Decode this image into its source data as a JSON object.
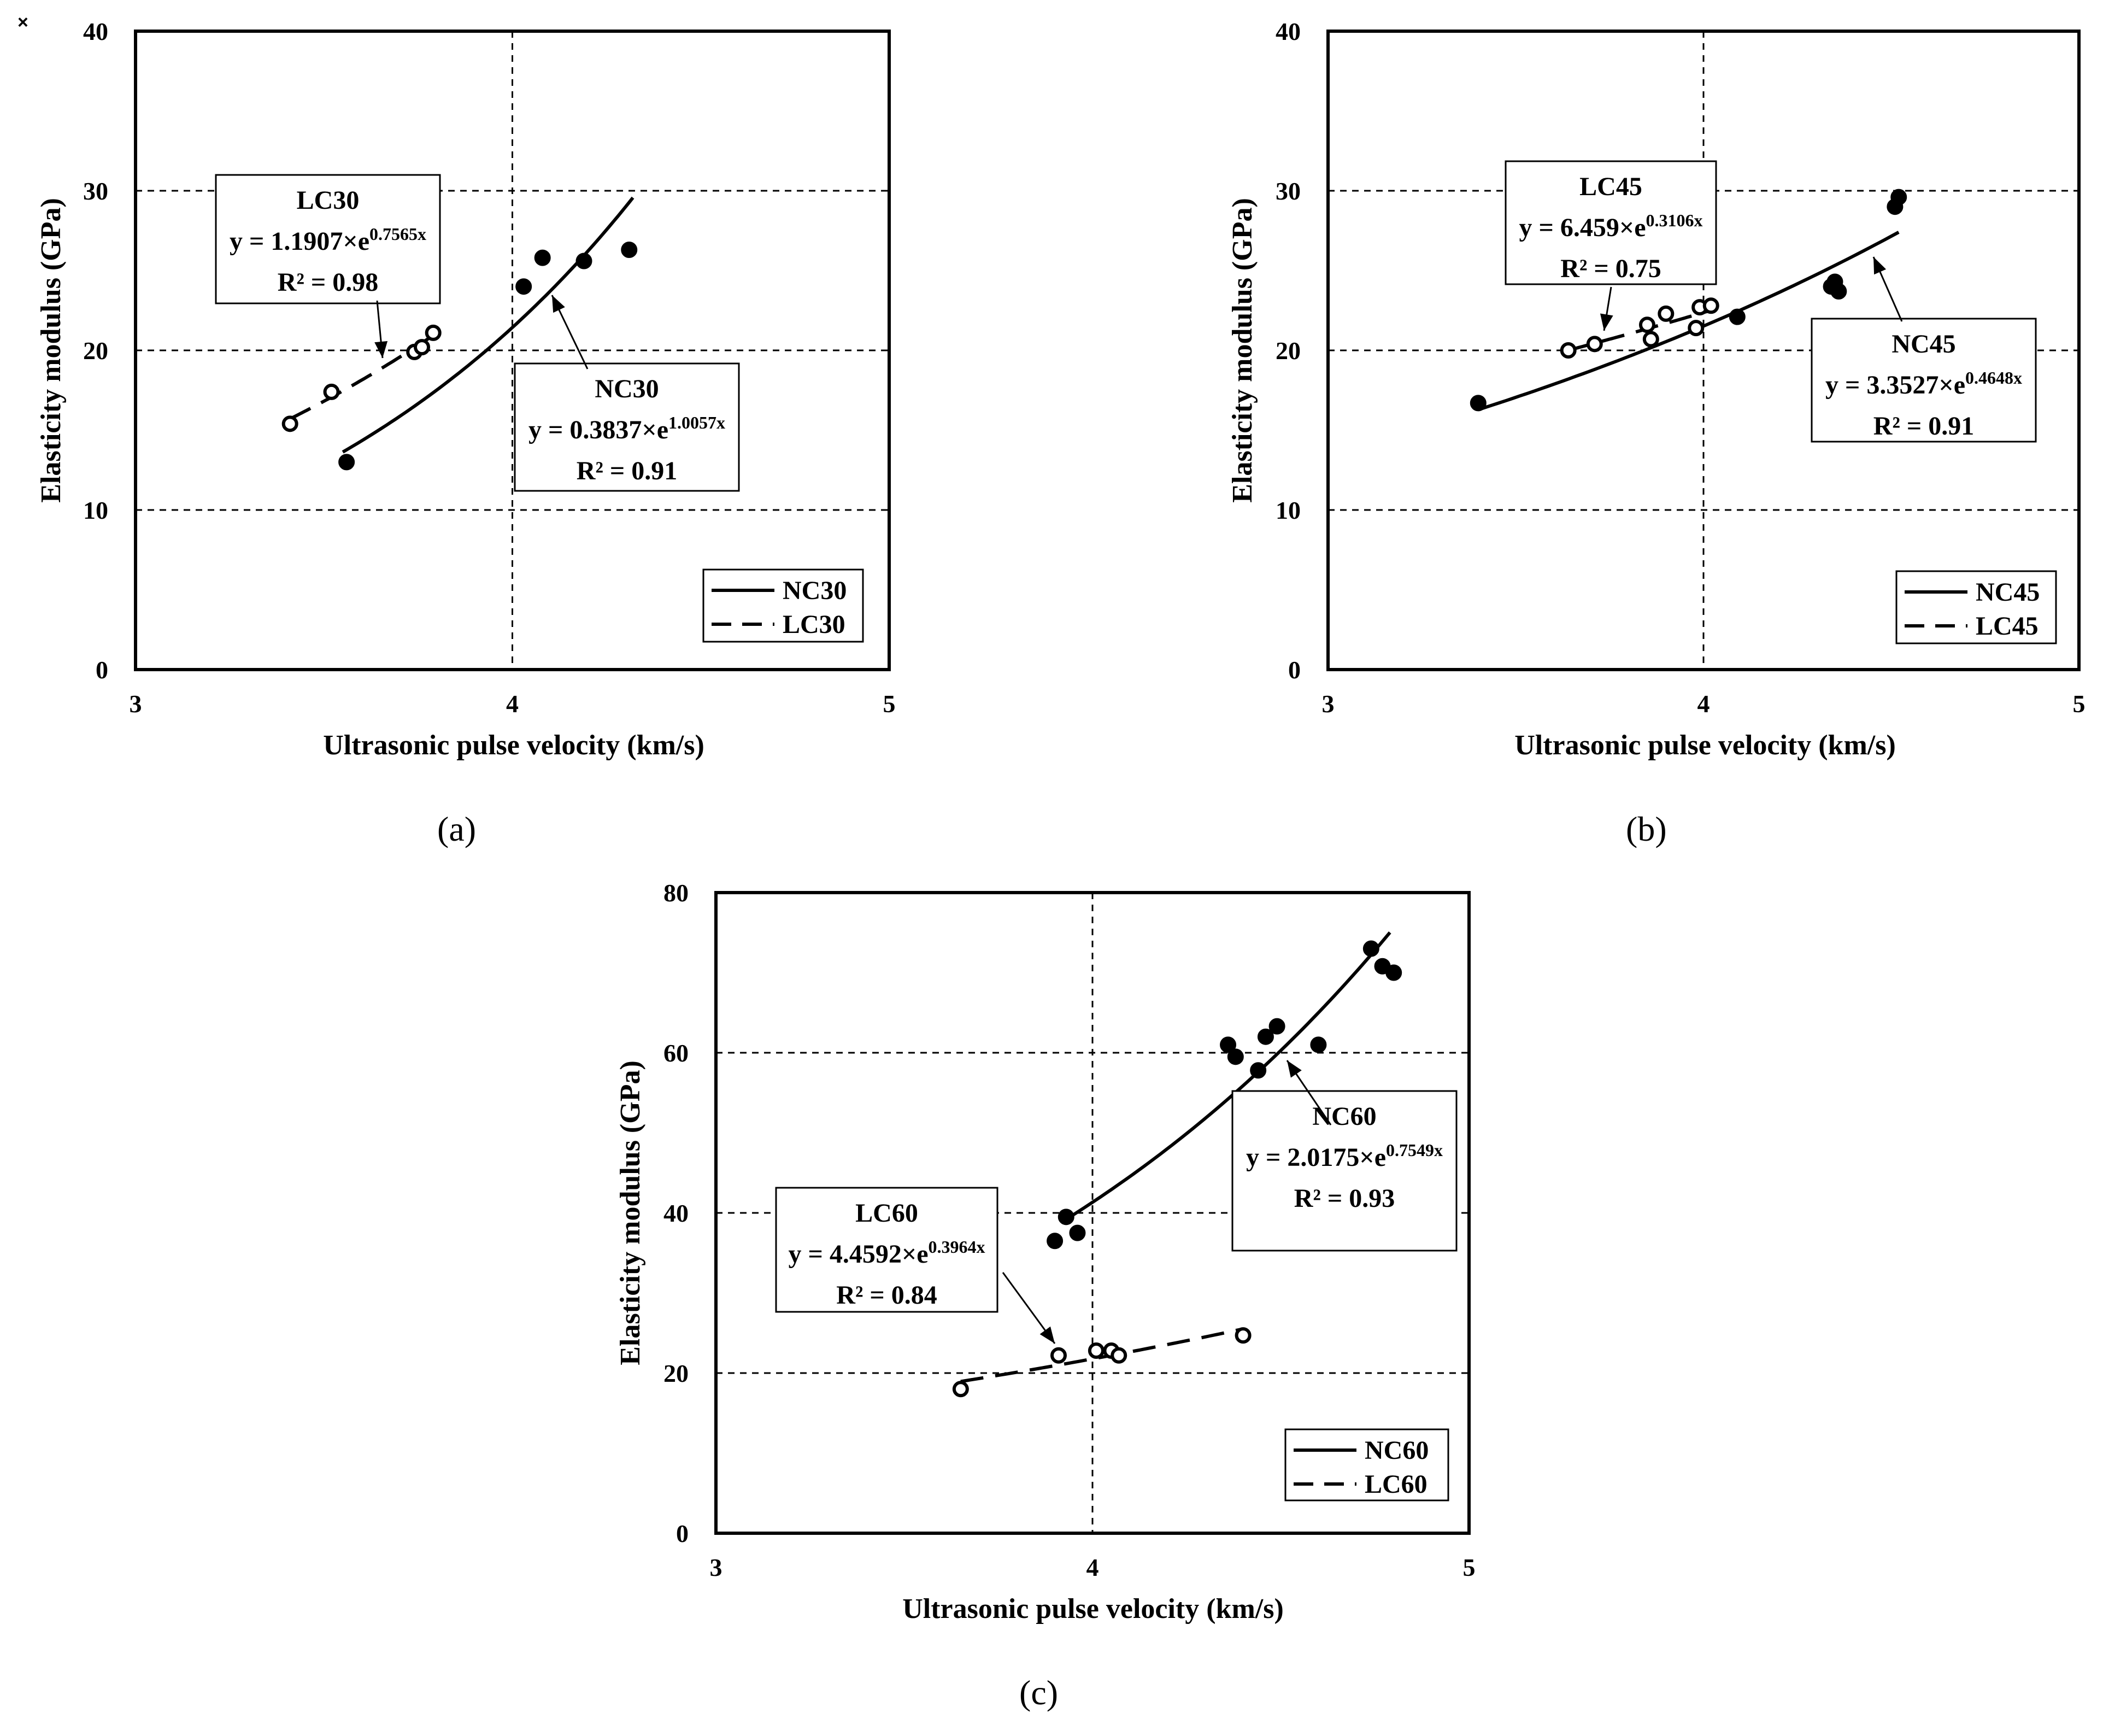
{
  "close_symbol": "×",
  "chart_data": [
    {
      "panel": "(a)",
      "type": "scatter",
      "xlabel": "Ultrasonic pulse velocity (km/s)",
      "ylabel": "Elasticity modulus (GPa)",
      "xlim": [
        3,
        5
      ],
      "ylim": [
        0,
        40
      ],
      "xticks": [
        3,
        4,
        5
      ],
      "yticks": [
        0,
        10,
        20,
        30,
        40
      ],
      "grid": "dashed major lines",
      "legend_position": "bottom-right",
      "series": [
        {
          "name": "NC30",
          "marker": "filled circle",
          "line": "solid",
          "fit": {
            "a": 0.3837,
            "b": 1.0057,
            "x_range": [
              3.55,
              4.32
            ]
          },
          "equation_prefix": "y = 0.3837×e",
          "exponent": "1.0057x",
          "r2": "R² = 0.91",
          "points": [
            [
              3.56,
              13.0
            ],
            [
              4.03,
              24.0
            ],
            [
              4.08,
              25.8
            ],
            [
              4.19,
              25.6
            ],
            [
              4.31,
              26.3
            ]
          ]
        },
        {
          "name": "LC30",
          "marker": "open circle",
          "line": "dashed",
          "fit": {
            "a": 1.1907,
            "b": 0.7565,
            "x_range": [
              3.41,
              3.79
            ]
          },
          "equation_prefix": "y = 1.1907×e",
          "exponent": "0.7565x",
          "r2": "R² = 0.98",
          "points": [
            [
              3.41,
              15.4
            ],
            [
              3.52,
              17.4
            ],
            [
              3.74,
              19.9
            ],
            [
              3.76,
              20.2
            ],
            [
              3.79,
              21.1
            ]
          ]
        }
      ]
    },
    {
      "panel": "(b)",
      "type": "scatter",
      "xlabel": "Ultrasonic pulse velocity (km/s)",
      "ylabel": "Elasticity modulus (GPa)",
      "xlim": [
        3,
        5
      ],
      "ylim": [
        0,
        40
      ],
      "xticks": [
        3,
        4,
        5
      ],
      "yticks": [
        0,
        10,
        20,
        30,
        40
      ],
      "grid": "dashed major lines",
      "legend_position": "bottom-right",
      "series": [
        {
          "name": "NC45",
          "marker": "filled circle",
          "line": "solid",
          "fit": {
            "a": 3.3527,
            "b": 0.4648,
            "x_range": [
              3.4,
              4.52
            ]
          },
          "equation_prefix": "y = 3.3527×e",
          "exponent": "0.4648x",
          "r2": "R² = 0.91",
          "points": [
            [
              3.4,
              16.7
            ],
            [
              4.09,
              22.1
            ],
            [
              4.34,
              24.0
            ],
            [
              4.35,
              24.3
            ],
            [
              4.36,
              23.7
            ],
            [
              4.51,
              29.0
            ],
            [
              4.52,
              29.6
            ]
          ]
        },
        {
          "name": "LC45",
          "marker": "open circle",
          "line": "dashed",
          "fit": {
            "a": 6.459,
            "b": 0.3106,
            "x_range": [
              3.64,
              4.02
            ]
          },
          "equation_prefix": "y = 6.459×e",
          "exponent": "0.3106x",
          "r2": "R² = 0.75",
          "points": [
            [
              3.64,
              20.0
            ],
            [
              3.71,
              20.4
            ],
            [
              3.85,
              21.6
            ],
            [
              3.86,
              20.7
            ],
            [
              3.9,
              22.3
            ],
            [
              3.98,
              21.4
            ],
            [
              3.99,
              22.7
            ],
            [
              4.02,
              22.8
            ]
          ]
        }
      ]
    },
    {
      "panel": "(c)",
      "type": "scatter",
      "xlabel": "Ultrasonic pulse velocity (km/s)",
      "ylabel": "Elasticity modulus (GPa)",
      "xlim": [
        3,
        5
      ],
      "ylim": [
        0,
        80
      ],
      "xticks": [
        3,
        4,
        5
      ],
      "yticks": [
        0,
        20,
        40,
        60,
        80
      ],
      "grid": "dashed major lines",
      "legend_position": "bottom-right",
      "series": [
        {
          "name": "NC60",
          "marker": "filled circle",
          "line": "solid",
          "fit": {
            "a": 2.0175,
            "b": 0.7549,
            "x_range": [
              3.92,
              4.79
            ]
          },
          "equation_prefix": "y = 2.0175×e",
          "exponent": "0.7549x",
          "r2": "R² = 0.93",
          "points": [
            [
              3.9,
              36.5
            ],
            [
              3.93,
              39.5
            ],
            [
              3.96,
              37.5
            ],
            [
              4.36,
              61.0
            ],
            [
              4.38,
              59.5
            ],
            [
              4.44,
              57.8
            ],
            [
              4.46,
              62.0
            ],
            [
              4.49,
              63.3
            ],
            [
              4.6,
              61.0
            ],
            [
              4.74,
              73.0
            ],
            [
              4.77,
              70.8
            ],
            [
              4.8,
              70.0
            ]
          ]
        },
        {
          "name": "LC60",
          "marker": "open circle",
          "line": "dashed",
          "fit": {
            "a": 4.4592,
            "b": 0.3964,
            "x_range": [
              3.65,
              4.4
            ]
          },
          "equation_prefix": "y = 4.4592×e",
          "exponent": "0.3964x",
          "r2": "R² = 0.84",
          "points": [
            [
              3.65,
              18.0
            ],
            [
              3.91,
              22.2
            ],
            [
              4.01,
              22.8
            ],
            [
              4.05,
              22.8
            ],
            [
              4.07,
              22.2
            ],
            [
              4.4,
              24.7
            ]
          ]
        }
      ]
    }
  ]
}
